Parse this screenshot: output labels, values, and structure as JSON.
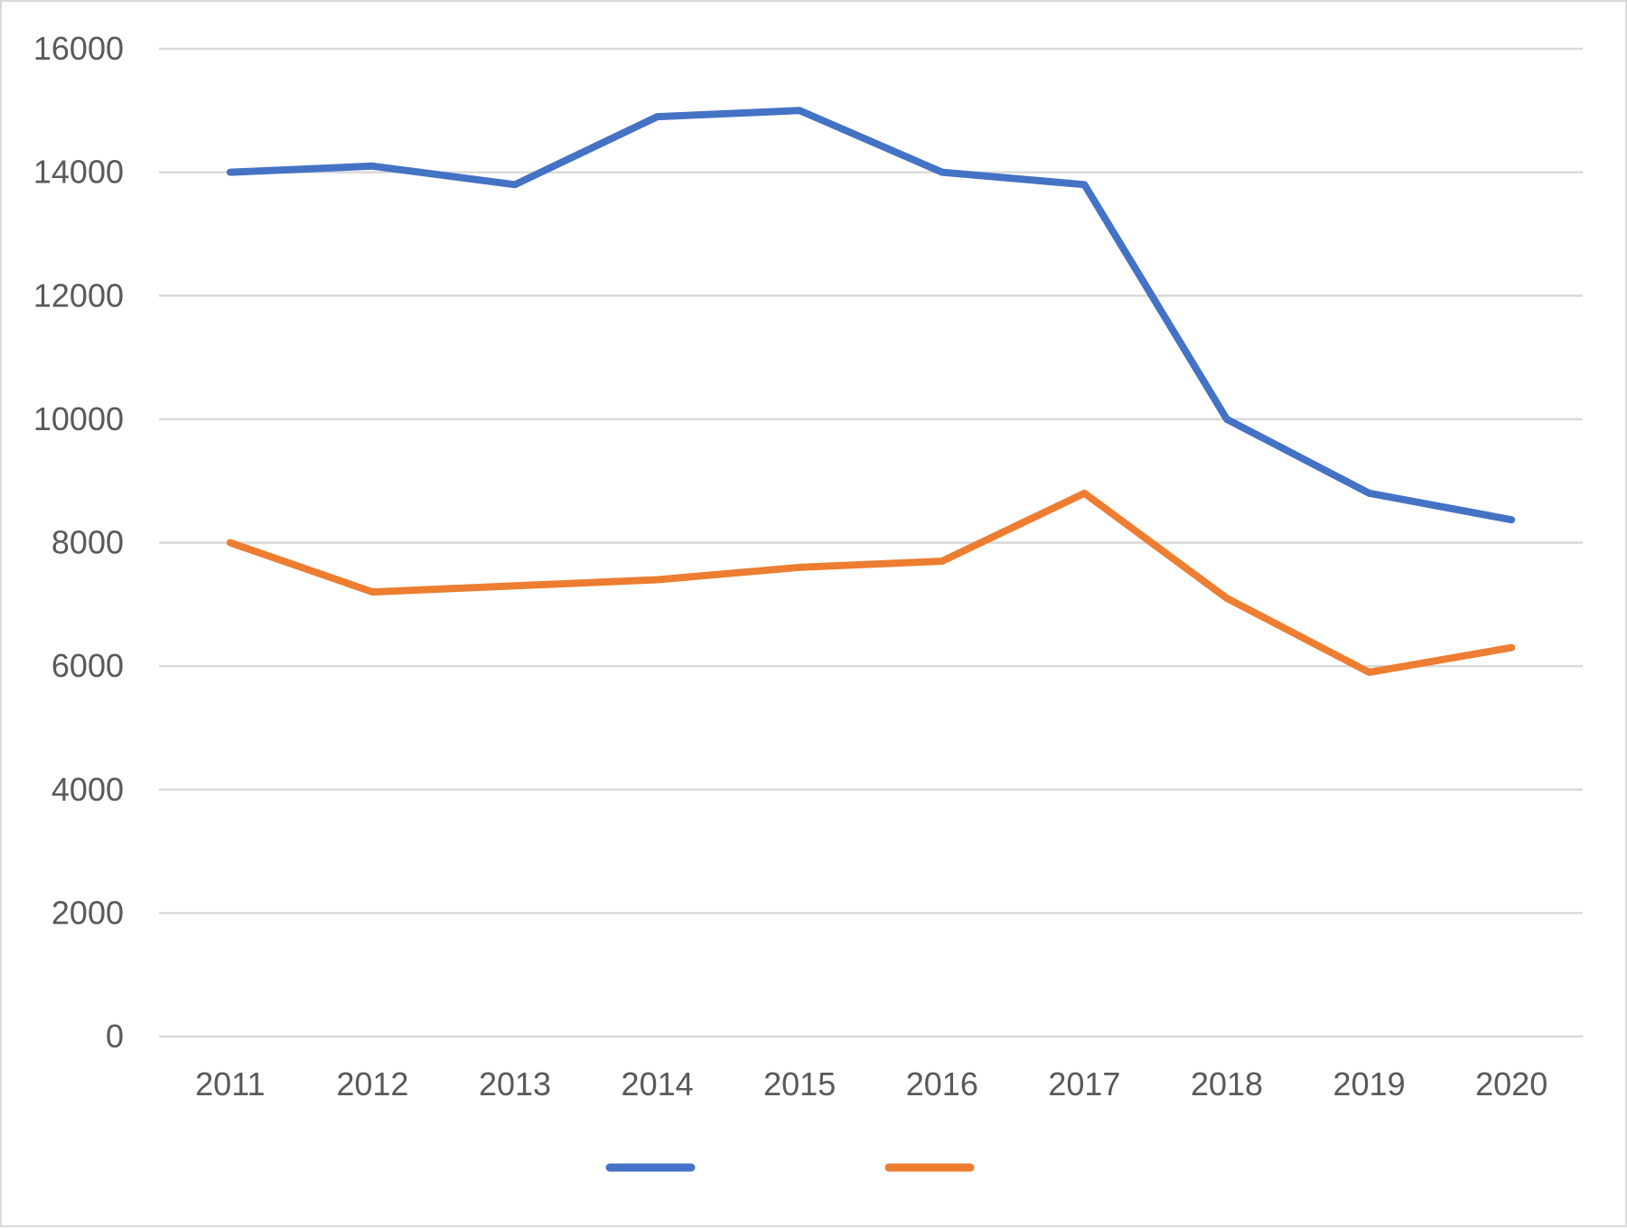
{
  "chart_data": {
    "type": "line",
    "title": "",
    "xlabel": "",
    "ylabel": "",
    "categories": [
      "2011",
      "2012",
      "2013",
      "2014",
      "2015",
      "2016",
      "2017",
      "2018",
      "2019",
      "2020"
    ],
    "y_ticks": [
      "0",
      "2000",
      "4000",
      "6000",
      "8000",
      "10000",
      "12000",
      "14000",
      "16000"
    ],
    "ylim": [
      0,
      16000
    ],
    "grid": true,
    "legend": "bottom",
    "series": [
      {
        "color": "#4472c4",
        "values": [
          14000,
          14100,
          13800,
          14900,
          15000,
          14000,
          13800,
          10000,
          8800,
          8370
        ]
      },
      {
        "color": "#ed7d31",
        "values": [
          8000,
          7200,
          7300,
          7400,
          7600,
          7700,
          8800,
          7100,
          5900,
          6300
        ]
      }
    ]
  }
}
